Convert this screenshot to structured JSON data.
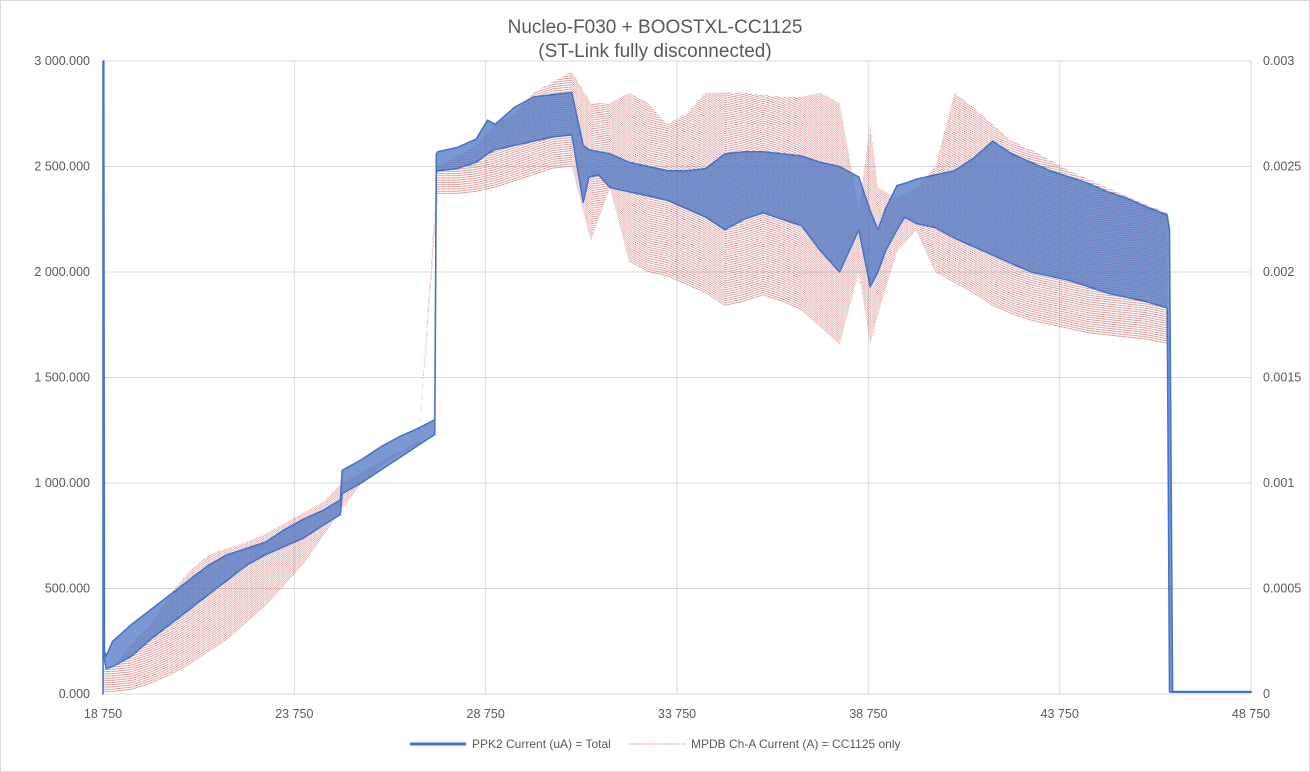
{
  "chart_data": {
    "type": "line",
    "title": "Nucleo-F030 + BOOSTXL-CC1125",
    "subtitle": "(ST-Link fully disconnected)",
    "xlim": [
      18750,
      48750
    ],
    "ylim": [
      0,
      3000
    ],
    "y2lim": [
      0,
      0.003
    ],
    "x_ticks": [
      "18 750",
      "23 750",
      "28 750",
      "33 750",
      "38 750",
      "43 750",
      "48 750"
    ],
    "y_ticks": [
      "0.000",
      "500.000",
      "1 000.000",
      "1 500.000",
      "2 000.000",
      "2 500.000",
      "3 000.000"
    ],
    "y2_ticks": [
      "0",
      "0.0005",
      "0.001",
      "0.0015",
      "0.002",
      "0.0025",
      "0.003"
    ],
    "grid": true,
    "legend_position": "bottom",
    "series": [
      {
        "name": "PPK2 Current (uA) = Total",
        "axis": "primary",
        "color": "#4472c4",
        "style": "band",
        "x": [
          18750,
          18770,
          18790,
          18830,
          19000,
          19500,
          20000,
          20500,
          21000,
          21500,
          22000,
          22500,
          23000,
          23500,
          24000,
          24500,
          24950,
          25000,
          25500,
          26000,
          26500,
          27000,
          27420,
          27460,
          27500,
          28000,
          28500,
          28800,
          29000,
          29500,
          30000,
          30500,
          31000,
          31300,
          31450,
          31700,
          32000,
          32500,
          33000,
          33500,
          34000,
          34500,
          35000,
          35500,
          36000,
          36500,
          37000,
          37500,
          38000,
          38500,
          38800,
          39000,
          39200,
          39500,
          39700,
          40000,
          40500,
          41000,
          41500,
          42000,
          42500,
          43000,
          43500,
          44000,
          44500,
          45000,
          45500,
          46000,
          46560,
          46620,
          46700,
          48750
        ],
        "low": [
          0,
          2900,
          160,
          120,
          130,
          180,
          260,
          330,
          400,
          470,
          540,
          610,
          660,
          700,
          740,
          800,
          850,
          950,
          1000,
          1060,
          1120,
          1180,
          1230,
          2470,
          2480,
          2490,
          2520,
          2560,
          2580,
          2600,
          2620,
          2640,
          2650,
          2330,
          2450,
          2460,
          2400,
          2380,
          2360,
          2340,
          2300,
          2260,
          2200,
          2250,
          2280,
          2250,
          2220,
          2100,
          2000,
          2200,
          1930,
          2000,
          2100,
          2200,
          2260,
          2230,
          2210,
          2160,
          2120,
          2080,
          2040,
          2000,
          1980,
          1960,
          1930,
          1900,
          1880,
          1860,
          1830,
          10,
          8,
          8
        ],
        "high": [
          3000,
          3000,
          200,
          180,
          250,
          330,
          400,
          470,
          540,
          610,
          660,
          690,
          720,
          780,
          830,
          870,
          920,
          1060,
          1110,
          1170,
          1220,
          1260,
          1300,
          2560,
          2570,
          2590,
          2630,
          2720,
          2700,
          2780,
          2830,
          2840,
          2850,
          2600,
          2580,
          2570,
          2560,
          2520,
          2500,
          2480,
          2480,
          2490,
          2560,
          2570,
          2570,
          2560,
          2550,
          2520,
          2500,
          2450,
          2290,
          2200,
          2300,
          2410,
          2420,
          2440,
          2460,
          2480,
          2540,
          2620,
          2560,
          2520,
          2480,
          2450,
          2420,
          2380,
          2350,
          2310,
          2270,
          2200,
          12,
          12
        ]
      },
      {
        "name": "MPDB Ch-A Current (A) = CC1125 only",
        "axis": "secondary",
        "color": "#c0504d",
        "style": "dotted-band",
        "x": [
          18770,
          19000,
          19500,
          20000,
          20500,
          21000,
          21500,
          22000,
          22500,
          23000,
          23500,
          24000,
          24500,
          25000,
          25500,
          26000,
          26500,
          27000,
          27500,
          28000,
          28500,
          29000,
          29500,
          30000,
          30500,
          31000,
          31500,
          32000,
          32500,
          33000,
          33500,
          34000,
          34500,
          35000,
          35500,
          36000,
          36500,
          37000,
          37500,
          38000,
          38500,
          38800,
          39000,
          39500,
          40000,
          40500,
          41000,
          41500,
          42000,
          42500,
          43000,
          43500,
          44000,
          44500,
          45000,
          45500,
          46000,
          46560,
          46620,
          48750
        ],
        "low": [
          1e-05,
          1e-05,
          2e-05,
          5e-05,
          9e-05,
          0.00014,
          0.0002,
          0.00026,
          0.00034,
          0.00042,
          0.00052,
          0.00062,
          0.00075,
          0.00088,
          0.001,
          0.00108,
          0.00114,
          0.00119,
          0.00237,
          0.00237,
          0.00238,
          0.0024,
          0.00243,
          0.00246,
          0.00249,
          0.0025,
          0.00215,
          0.0024,
          0.00205,
          0.002,
          0.00198,
          0.00194,
          0.0019,
          0.00184,
          0.00186,
          0.00189,
          0.00186,
          0.00182,
          0.00174,
          0.00166,
          0.002,
          0.00166,
          0.0018,
          0.0021,
          0.0022,
          0.002,
          0.00195,
          0.0019,
          0.00184,
          0.0018,
          0.00177,
          0.00175,
          0.00173,
          0.00171,
          0.0017,
          0.00169,
          0.00168,
          0.00166,
          2e-05,
          2e-05
        ],
        "high": [
          0.00012,
          0.00012,
          0.00024,
          0.00033,
          0.00047,
          0.00058,
          0.00066,
          0.00069,
          0.00072,
          0.00076,
          0.00081,
          0.00086,
          0.00091,
          0.001,
          0.00105,
          0.0011,
          0.00115,
          0.0012,
          0.0025,
          0.00255,
          0.0026,
          0.0027,
          0.00275,
          0.00285,
          0.0029,
          0.00295,
          0.0028,
          0.0028,
          0.00285,
          0.0028,
          0.0027,
          0.00275,
          0.00285,
          0.00285,
          0.00285,
          0.00284,
          0.00283,
          0.00283,
          0.00285,
          0.0028,
          0.0023,
          0.0027,
          0.0024,
          0.00235,
          0.0024,
          0.0025,
          0.00285,
          0.00278,
          0.0027,
          0.00262,
          0.00258,
          0.00253,
          0.00248,
          0.00244,
          0.0024,
          0.00236,
          0.00232,
          0.00228,
          2e-05,
          2e-05
        ]
      }
    ]
  }
}
